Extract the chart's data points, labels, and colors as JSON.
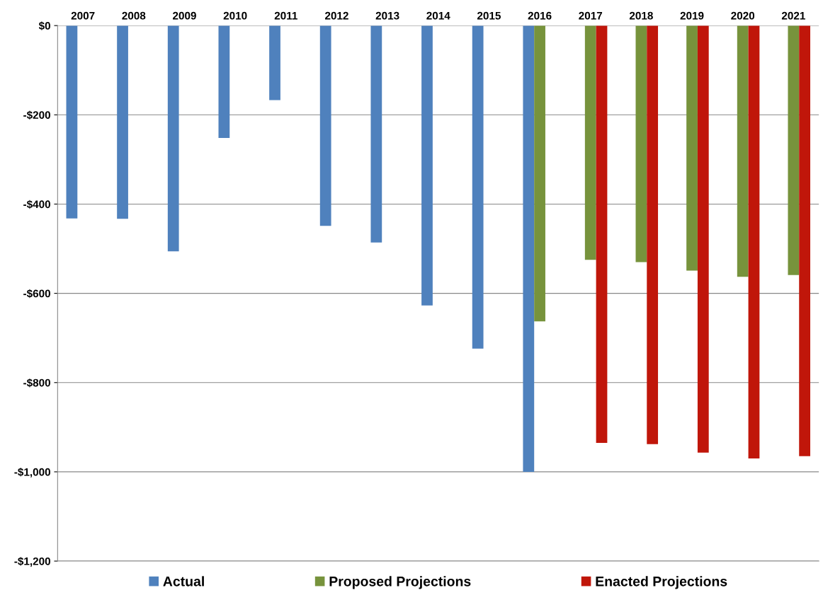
{
  "chart_data": {
    "type": "bar",
    "categories": [
      "2007",
      "2008",
      "2009",
      "2010",
      "2011",
      "2012",
      "2013",
      "2014",
      "2015",
      "2016",
      "2017",
      "2018",
      "2019",
      "2020",
      "2021"
    ],
    "series": [
      {
        "name": "Actual",
        "color": "#4f81bd",
        "values": [
          -432,
          -433,
          -506,
          -252,
          -167,
          -449,
          -486,
          -627,
          -724,
          -1000,
          null,
          null,
          null,
          null,
          null
        ]
      },
      {
        "name": "Proposed Projections",
        "color": "#77933c",
        "values": [
          null,
          null,
          null,
          null,
          null,
          null,
          null,
          null,
          null,
          -663,
          -525,
          -530,
          -549,
          -563,
          -559
        ]
      },
      {
        "name": "Enacted Projections",
        "color": "#c0160a",
        "values": [
          null,
          null,
          null,
          null,
          null,
          null,
          null,
          null,
          null,
          null,
          -935,
          -938,
          -957,
          -970,
          -965
        ]
      }
    ],
    "ylim": [
      -1200,
      0
    ],
    "yticks": [
      {
        "value": -1200,
        "label": "-$1,200"
      },
      {
        "value": -1000,
        "label": "-$1,000"
      },
      {
        "value": -800,
        "label": "-$800"
      },
      {
        "value": -600,
        "label": "-$600"
      },
      {
        "value": -400,
        "label": "-$400"
      },
      {
        "value": -200,
        "label": "-$200"
      },
      {
        "value": 0,
        "label": "$0"
      }
    ],
    "grid": "y",
    "legend": "bottom"
  }
}
